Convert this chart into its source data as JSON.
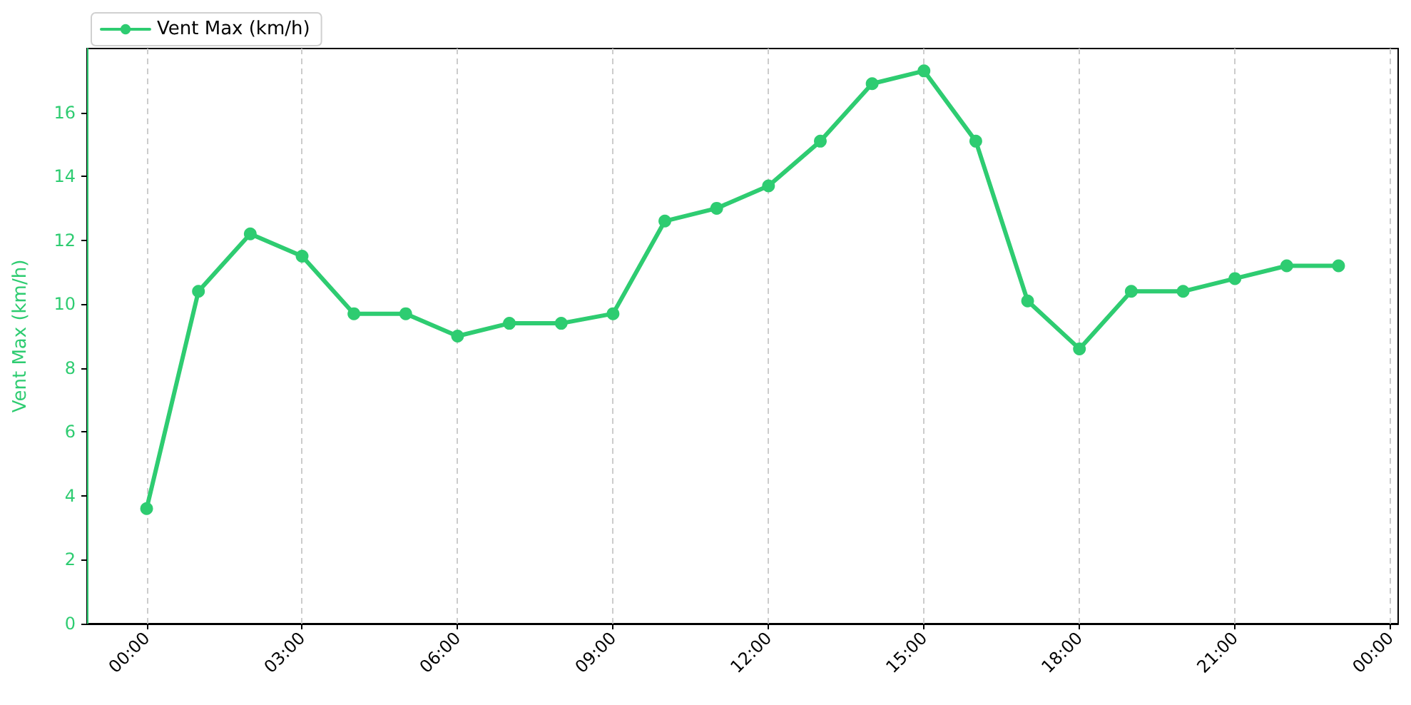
{
  "chart_data": {
    "type": "line",
    "ylabel": "Vent Max (km/h)",
    "x": [
      0,
      1,
      2,
      3,
      4,
      5,
      6,
      7,
      8,
      9,
      10,
      11,
      12,
      13,
      14,
      15,
      16,
      17,
      18,
      19,
      20,
      21,
      22,
      23
    ],
    "series": [
      {
        "name": "Vent Max (km/h)",
        "color": "#2ecc71",
        "values": [
          3.6,
          10.4,
          12.2,
          11.5,
          9.7,
          9.7,
          9.0,
          9.4,
          9.4,
          9.7,
          12.6,
          13.0,
          13.7,
          15.1,
          16.9,
          17.3,
          15.1,
          10.1,
          8.6,
          10.4,
          10.4,
          10.8,
          11.2,
          11.2
        ]
      }
    ],
    "xlim": [
      -1.15,
      24.15
    ],
    "xticks": [
      {
        "value": 0,
        "label": "00:00"
      },
      {
        "value": 3,
        "label": "03:00"
      },
      {
        "value": 6,
        "label": "06:00"
      },
      {
        "value": 9,
        "label": "09:00"
      },
      {
        "value": 12,
        "label": "12:00"
      },
      {
        "value": 15,
        "label": "15:00"
      },
      {
        "value": 18,
        "label": "18:00"
      },
      {
        "value": 21,
        "label": "21:00"
      },
      {
        "value": 24,
        "label": "00:00"
      }
    ],
    "ylim": [
      0,
      18
    ],
    "yticks": [
      0,
      2,
      4,
      6,
      8,
      10,
      12,
      14,
      16
    ],
    "grid": "x",
    "legend": "top left",
    "marker": "circle"
  }
}
